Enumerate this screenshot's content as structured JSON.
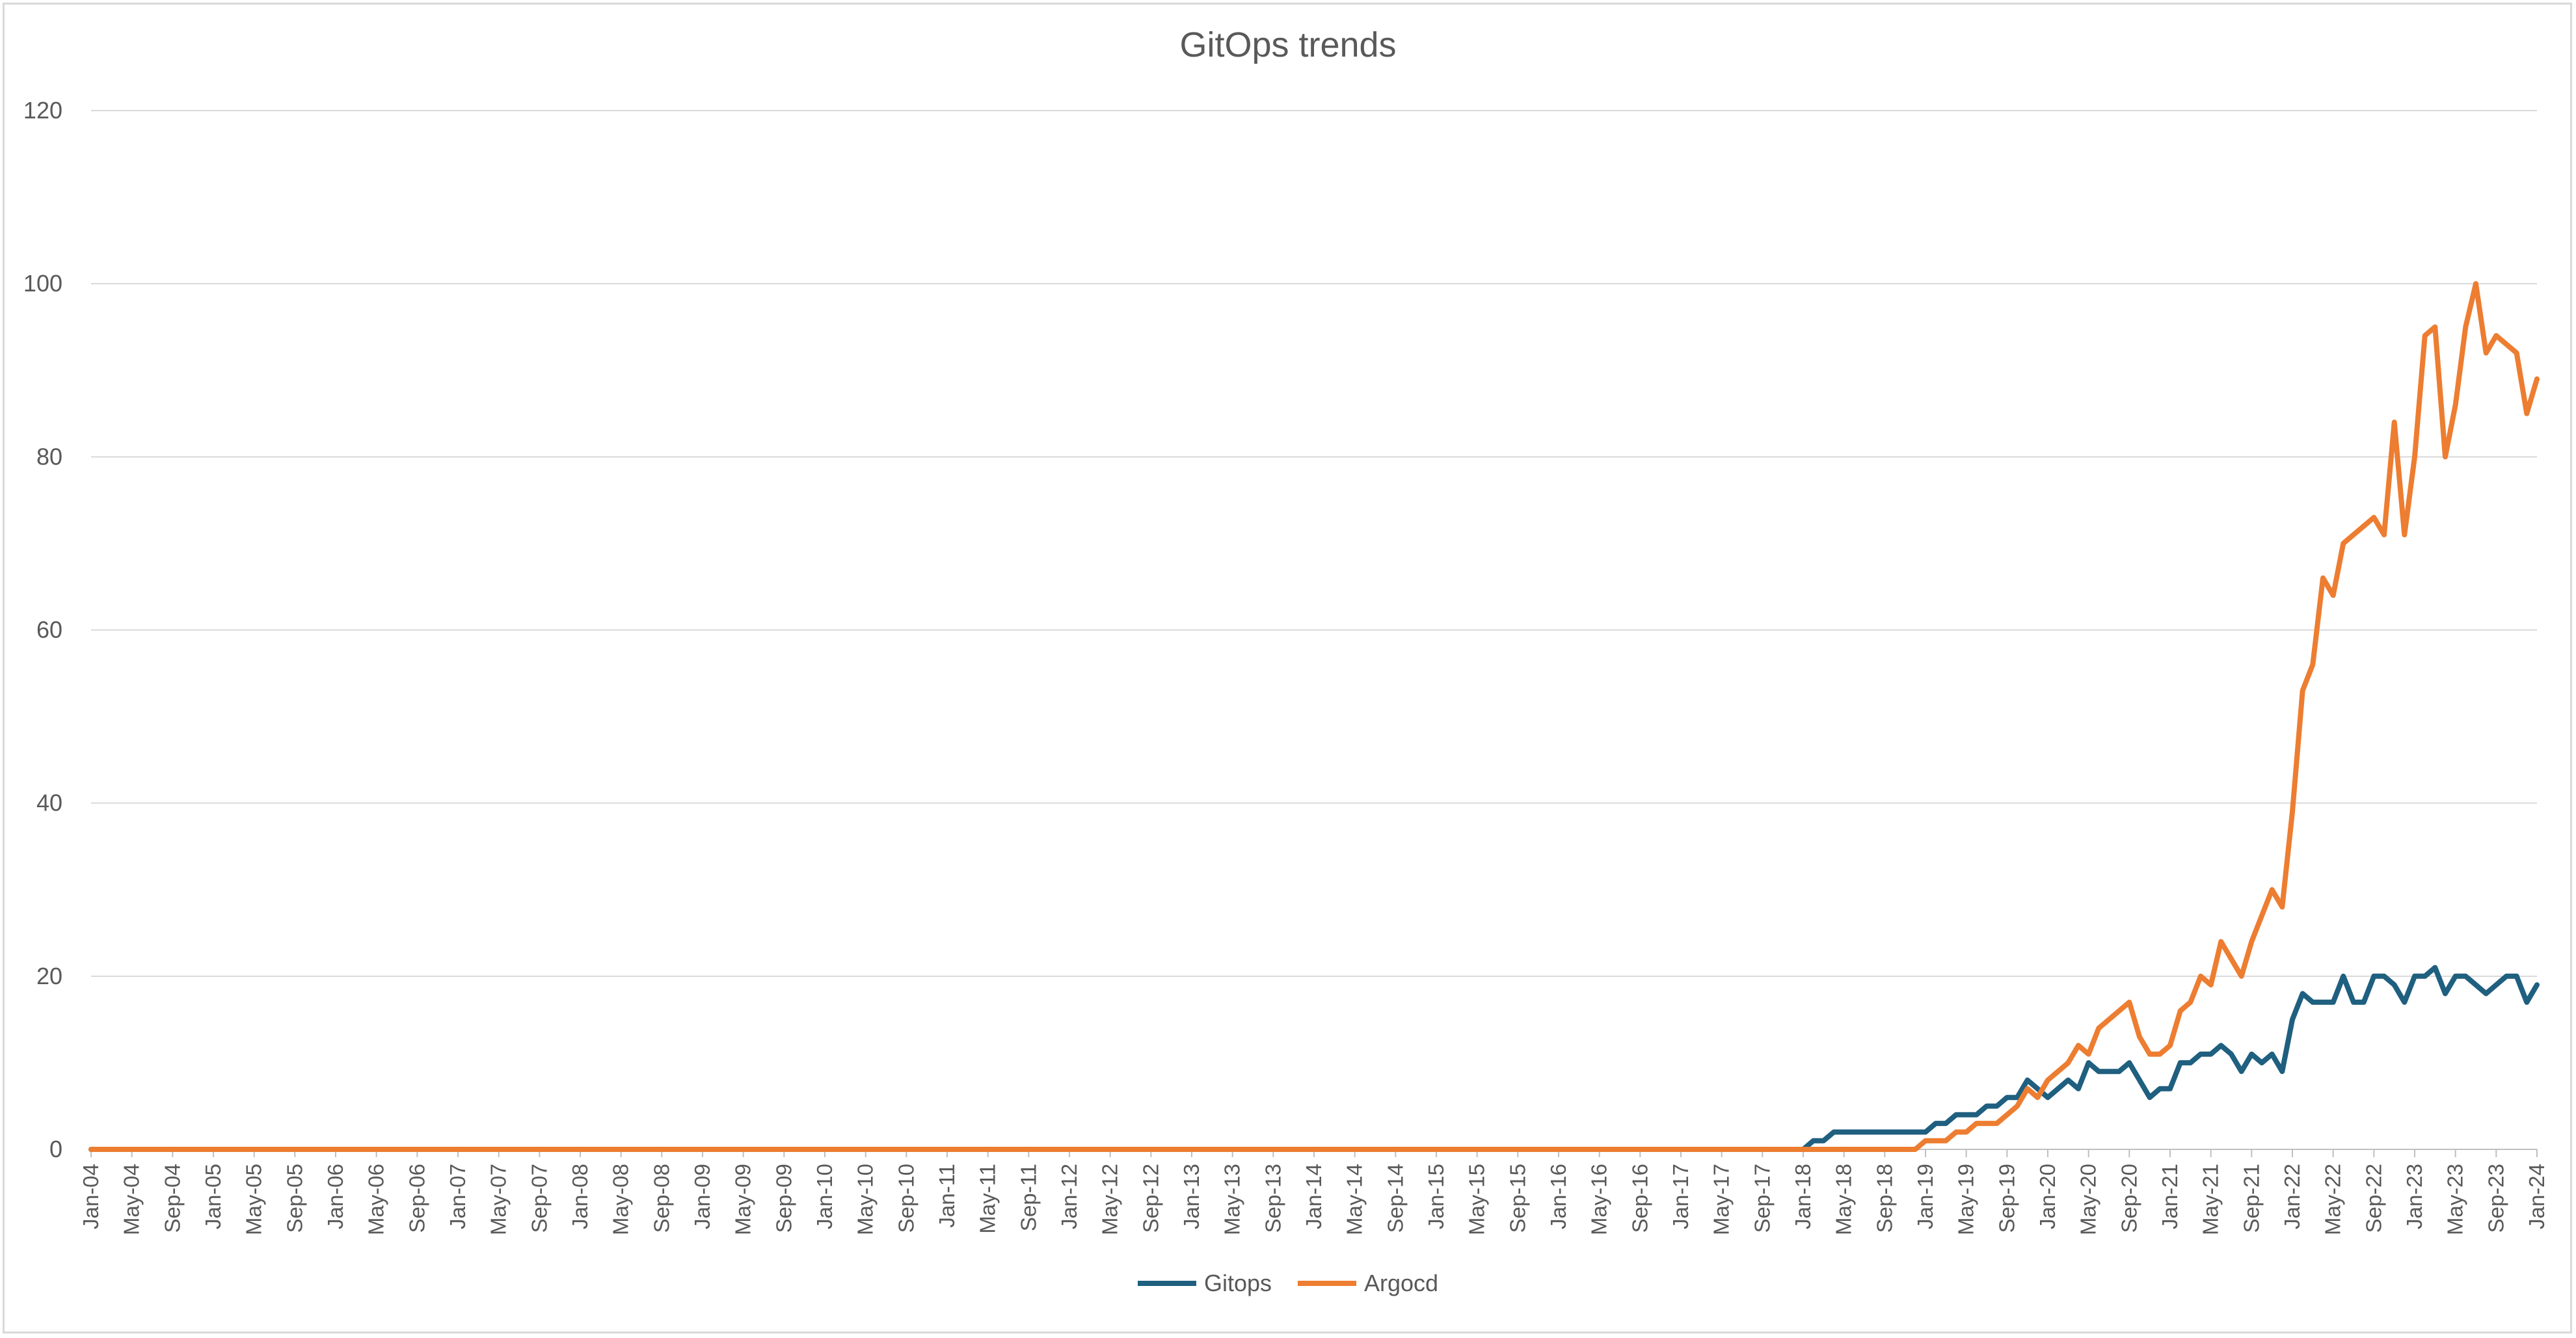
{
  "chart_data": {
    "type": "line",
    "title": "GitOps  trends",
    "xlabel": "",
    "ylabel": "",
    "ylim": [
      0,
      120
    ],
    "yticks": [
      0,
      20,
      40,
      60,
      80,
      100,
      120
    ],
    "grid": true,
    "legend_position": "bottom",
    "x_start": "Jan-04",
    "x_end": "Jan-24",
    "x_tick_labels": [
      "Jan-04",
      "May-04",
      "Sep-04",
      "Jan-05",
      "May-05",
      "Sep-05",
      "Jan-06",
      "May-06",
      "Sep-06",
      "Jan-07",
      "May-07",
      "Sep-07",
      "Jan-08",
      "May-08",
      "Sep-08",
      "Jan-09",
      "May-09",
      "Sep-09",
      "Jan-10",
      "May-10",
      "Sep-10",
      "Jan-11",
      "May-11",
      "Sep-11",
      "Jan-12",
      "May-12",
      "Sep-12",
      "Jan-13",
      "May-13",
      "Sep-13",
      "Jan-14",
      "May-14",
      "Sep-14",
      "Jan-15",
      "May-15",
      "Sep-15",
      "Jan-16",
      "May-16",
      "Sep-16",
      "Jan-17",
      "May-17",
      "Sep-17",
      "Jan-18",
      "May-18",
      "Sep-18",
      "Jan-19",
      "May-19",
      "Sep-19",
      "Jan-20",
      "May-20",
      "Sep-20",
      "Jan-21",
      "May-21",
      "Sep-21",
      "Jan-22",
      "May-22",
      "Sep-22",
      "Jan-23",
      "May-23",
      "Sep-23",
      "Jan-24"
    ],
    "series": [
      {
        "name": "Gitops",
        "color": "#1f5f7f",
        "points": [
          [
            "Jan-04",
            0
          ],
          [
            "Jan-18",
            0
          ],
          [
            "Feb-18",
            1
          ],
          [
            "Mar-18",
            1
          ],
          [
            "Apr-18",
            2
          ],
          [
            "May-18",
            2
          ],
          [
            "Jun-18",
            2
          ],
          [
            "Jul-18",
            2
          ],
          [
            "Aug-18",
            2
          ],
          [
            "Sep-18",
            2
          ],
          [
            "Oct-18",
            2
          ],
          [
            "Nov-18",
            2
          ],
          [
            "Dec-18",
            2
          ],
          [
            "Jan-19",
            2
          ],
          [
            "Feb-19",
            3
          ],
          [
            "Mar-19",
            3
          ],
          [
            "Apr-19",
            4
          ],
          [
            "May-19",
            4
          ],
          [
            "Jun-19",
            4
          ],
          [
            "Jul-19",
            5
          ],
          [
            "Aug-19",
            5
          ],
          [
            "Sep-19",
            6
          ],
          [
            "Oct-19",
            6
          ],
          [
            "Nov-19",
            8
          ],
          [
            "Dec-19",
            7
          ],
          [
            "Jan-20",
            6
          ],
          [
            "Feb-20",
            7
          ],
          [
            "Mar-20",
            8
          ],
          [
            "Apr-20",
            7
          ],
          [
            "May-20",
            10
          ],
          [
            "Jun-20",
            9
          ],
          [
            "Jul-20",
            9
          ],
          [
            "Aug-20",
            9
          ],
          [
            "Sep-20",
            10
          ],
          [
            "Oct-20",
            8
          ],
          [
            "Nov-20",
            6
          ],
          [
            "Dec-20",
            7
          ],
          [
            "Jan-21",
            7
          ],
          [
            "Feb-21",
            10
          ],
          [
            "Mar-21",
            10
          ],
          [
            "Apr-21",
            11
          ],
          [
            "May-21",
            11
          ],
          [
            "Jun-21",
            12
          ],
          [
            "Jul-21",
            11
          ],
          [
            "Aug-21",
            9
          ],
          [
            "Sep-21",
            11
          ],
          [
            "Oct-21",
            10
          ],
          [
            "Nov-21",
            11
          ],
          [
            "Dec-21",
            9
          ],
          [
            "Jan-22",
            15
          ],
          [
            "Feb-22",
            18
          ],
          [
            "Mar-22",
            17
          ],
          [
            "Apr-22",
            17
          ],
          [
            "May-22",
            17
          ],
          [
            "Jun-22",
            20
          ],
          [
            "Jul-22",
            17
          ],
          [
            "Aug-22",
            17
          ],
          [
            "Sep-22",
            20
          ],
          [
            "Oct-22",
            20
          ],
          [
            "Nov-22",
            19
          ],
          [
            "Dec-22",
            17
          ],
          [
            "Jan-23",
            20
          ],
          [
            "Feb-23",
            20
          ],
          [
            "Mar-23",
            21
          ],
          [
            "Apr-23",
            18
          ],
          [
            "May-23",
            20
          ],
          [
            "Jun-23",
            20
          ],
          [
            "Jul-23",
            19
          ],
          [
            "Aug-23",
            18
          ],
          [
            "Sep-23",
            19
          ],
          [
            "Oct-23",
            20
          ],
          [
            "Nov-23",
            20
          ],
          [
            "Dec-23",
            17
          ],
          [
            "Jan-24",
            19
          ]
        ]
      },
      {
        "name": "Argocd",
        "color": "#ed7d31",
        "points": [
          [
            "Jan-04",
            0
          ],
          [
            "Dec-18",
            0
          ],
          [
            "Jan-19",
            1
          ],
          [
            "Feb-19",
            1
          ],
          [
            "Mar-19",
            1
          ],
          [
            "Apr-19",
            2
          ],
          [
            "May-19",
            2
          ],
          [
            "Jun-19",
            3
          ],
          [
            "Jul-19",
            3
          ],
          [
            "Aug-19",
            3
          ],
          [
            "Sep-19",
            4
          ],
          [
            "Oct-19",
            5
          ],
          [
            "Nov-19",
            7
          ],
          [
            "Dec-19",
            6
          ],
          [
            "Jan-20",
            8
          ],
          [
            "Feb-20",
            9
          ],
          [
            "Mar-20",
            10
          ],
          [
            "Apr-20",
            12
          ],
          [
            "May-20",
            11
          ],
          [
            "Jun-20",
            14
          ],
          [
            "Jul-20",
            15
          ],
          [
            "Aug-20",
            16
          ],
          [
            "Sep-20",
            17
          ],
          [
            "Oct-20",
            13
          ],
          [
            "Nov-20",
            11
          ],
          [
            "Dec-20",
            11
          ],
          [
            "Jan-21",
            12
          ],
          [
            "Feb-21",
            16
          ],
          [
            "Mar-21",
            17
          ],
          [
            "Apr-21",
            20
          ],
          [
            "May-21",
            19
          ],
          [
            "Jun-21",
            24
          ],
          [
            "Jul-21",
            22
          ],
          [
            "Aug-21",
            20
          ],
          [
            "Sep-21",
            24
          ],
          [
            "Oct-21",
            27
          ],
          [
            "Nov-21",
            30
          ],
          [
            "Dec-21",
            28
          ],
          [
            "Jan-22",
            39
          ],
          [
            "Feb-22",
            53
          ],
          [
            "Mar-22",
            56
          ],
          [
            "Apr-22",
            66
          ],
          [
            "May-22",
            64
          ],
          [
            "Jun-22",
            70
          ],
          [
            "Jul-22",
            71
          ],
          [
            "Aug-22",
            72
          ],
          [
            "Sep-22",
            73
          ],
          [
            "Oct-22",
            71
          ],
          [
            "Nov-22",
            84
          ],
          [
            "Dec-22",
            71
          ],
          [
            "Jan-23",
            80
          ],
          [
            "Feb-23",
            94
          ],
          [
            "Mar-23",
            95
          ],
          [
            "Apr-23",
            80
          ],
          [
            "May-23",
            86
          ],
          [
            "Jun-23",
            95
          ],
          [
            "Jul-23",
            100
          ],
          [
            "Aug-23",
            92
          ],
          [
            "Sep-23",
            94
          ],
          [
            "Oct-23",
            93
          ],
          [
            "Nov-23",
            92
          ],
          [
            "Dec-23",
            85
          ],
          [
            "Jan-24",
            89
          ]
        ]
      }
    ]
  }
}
